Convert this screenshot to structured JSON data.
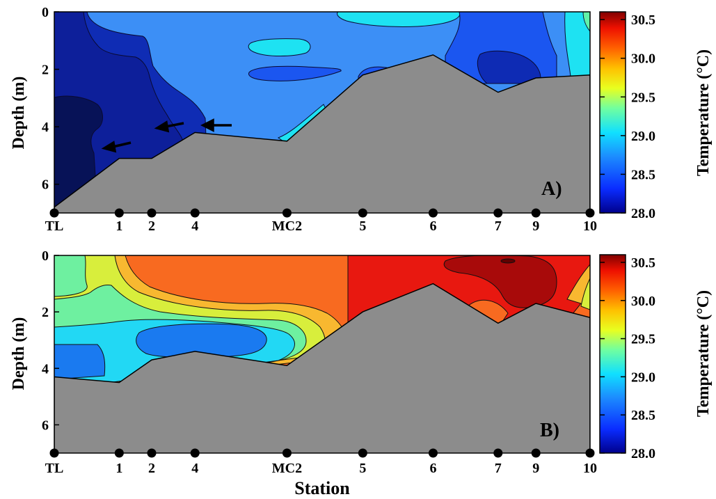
{
  "chart_data": [
    {
      "type": "heatmap",
      "panel_label": "A)",
      "ylabel": "Depth (m)",
      "xlabel": "",
      "ylim": [
        7,
        0
      ],
      "yticks": [
        "0",
        "2",
        "4",
        "6"
      ],
      "stations": [
        "TL",
        "1",
        "2",
        "4",
        "MC2",
        "5",
        "6",
        "7",
        "9",
        "10"
      ],
      "station_pos": [
        0,
        1.2,
        1.8,
        2.6,
        4.3,
        5.7,
        7.0,
        8.2,
        8.9,
        9.9
      ],
      "bottom_depth": [
        6.8,
        5.1,
        5.1,
        4.2,
        4.5,
        2.2,
        1.5,
        2.8,
        2.3,
        2.2
      ],
      "colorbar": {
        "label": "Temperature (°C)",
        "min": 28.0,
        "max": 30.6,
        "ticks": [
          "28.0",
          "28.5",
          "29.0",
          "29.5",
          "30.0",
          "30.5"
        ]
      },
      "fill_colors": [
        "#0a1a7a",
        "#0e2bb4",
        "#1c59f2",
        "#3b8ef5",
        "#19e0f0",
        "#5ff0a8"
      ],
      "arrows": 3
    },
    {
      "type": "heatmap",
      "panel_label": "B)",
      "ylabel": "Depth (m)",
      "xlabel": "Station",
      "ylim": [
        7,
        0
      ],
      "yticks": [
        "0",
        "2",
        "4",
        "6"
      ],
      "stations": [
        "TL",
        "1",
        "2",
        "4",
        "MC2",
        "5",
        "6",
        "7",
        "9",
        "10"
      ],
      "station_pos": [
        0,
        1.2,
        1.8,
        2.6,
        4.3,
        5.7,
        7.0,
        8.2,
        8.9,
        9.9
      ],
      "bottom_depth": [
        4.3,
        4.5,
        3.7,
        3.4,
        3.9,
        2.0,
        1.0,
        2.4,
        1.7,
        2.2
      ],
      "colorbar": {
        "label": "Temperature (°C)",
        "min": 28.0,
        "max": 30.6,
        "ticks": [
          "28.0",
          "28.5",
          "29.0",
          "29.5",
          "30.0",
          "30.5"
        ]
      },
      "fill_colors": [
        "#1a7af0",
        "#22d8f4",
        "#6ef0a0",
        "#d8f040",
        "#f8b830",
        "#f86020",
        "#e81810",
        "#a80a0a"
      ]
    }
  ],
  "colors": {
    "bottom": "#8c8c8c",
    "marker": "#000000"
  }
}
